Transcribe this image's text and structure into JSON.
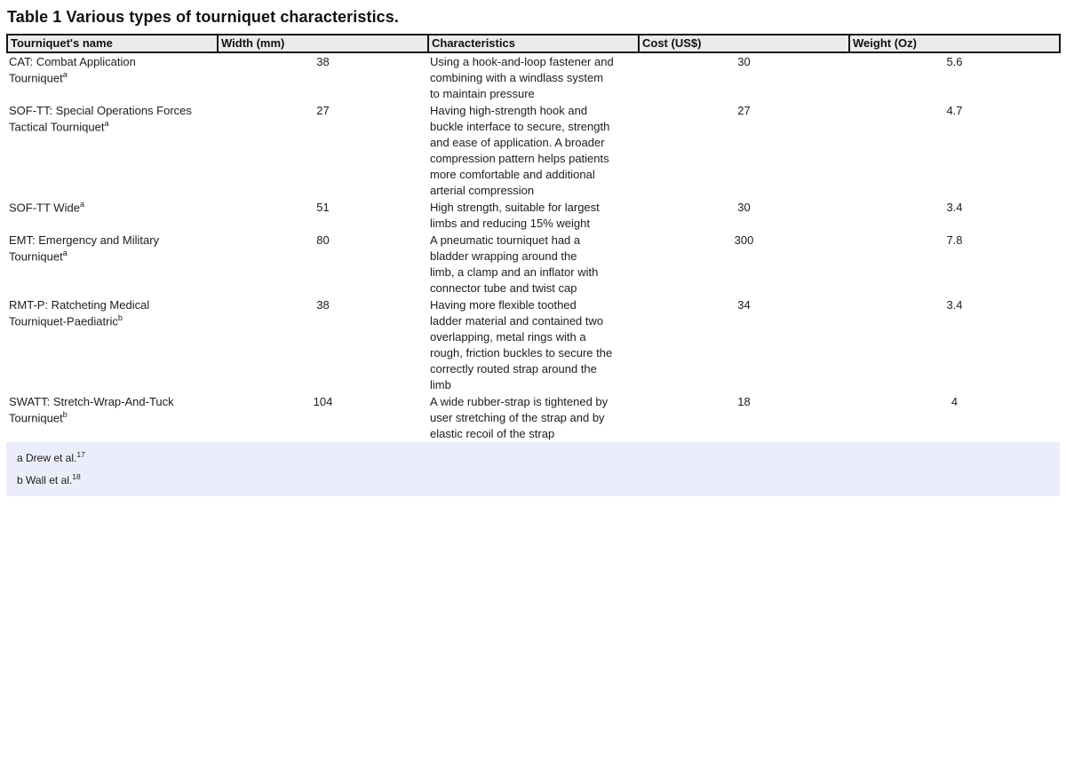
{
  "title": "Table 1 Various types of tourniquet characteristics.",
  "table": {
    "headers": [
      "Tourniquet's name",
      "Width (mm)",
      "Characteristics",
      "Cost (US$)",
      "Weight (Oz)"
    ],
    "rows": [
      {
        "name": "CAT: Combat Application\nTourniquet",
        "marker": "a",
        "width_mm": "38",
        "characteristics": "Using a hook-and-loop fastener and\ncombining with a windlass system\nto maintain pressure",
        "cost_usd": "30",
        "weight_oz": "5.6"
      },
      {
        "name": "SOF-TT: Special Operations Forces\nTactical Tourniquet",
        "marker": "a",
        "width_mm": "27",
        "characteristics": "Having high-strength hook and\nbuckle interface to secure, strength\nand ease of application. A broader\ncompression pattern helps patients\nmore comfortable and additional\narterial compression",
        "cost_usd": "27",
        "weight_oz": "4.7"
      },
      {
        "name": "SOF-TT Wide",
        "marker": "a",
        "width_mm": "51",
        "characteristics": "High strength, suitable for largest\nlimbs and reducing 15% weight",
        "cost_usd": "30",
        "weight_oz": "3.4"
      },
      {
        "name": "EMT: Emergency and Military\nTourniquet",
        "marker": "a",
        "width_mm": "80",
        "characteristics": "A pneumatic tourniquet had a\nbladder wrapping around the\nlimb, a clamp and an inflator with\nconnector tube and twist cap",
        "cost_usd": "300",
        "weight_oz": "7.8"
      },
      {
        "name": "RMT-P: Ratcheting Medical\nTourniquet-Paediatric",
        "marker": "b",
        "width_mm": "38",
        "characteristics": "Having more flexible toothed\nladder material and contained two\noverlapping, metal rings with a\nrough, friction buckles to secure the\ncorrectly routed strap around the\nlimb",
        "cost_usd": "34",
        "weight_oz": "3.4"
      },
      {
        "name": "SWATT: Stretch-Wrap-And-Tuck\nTourniquet",
        "marker": "b",
        "width_mm": "104",
        "characteristics": "A wide rubber-strap is tightened by\nuser stretching of the strap and by\nelastic recoil of the strap",
        "cost_usd": "18",
        "weight_oz": "4"
      }
    ]
  },
  "footnotes": [
    {
      "label": "a Drew et al.",
      "ref": "17"
    },
    {
      "label": "b Wall et al.",
      "ref": "18"
    }
  ],
  "colors": {
    "header_bg": "#ebebeb",
    "header_border": "#141414",
    "footnote_bg": "#ecedfa",
    "text": "#1c1c1c"
  }
}
